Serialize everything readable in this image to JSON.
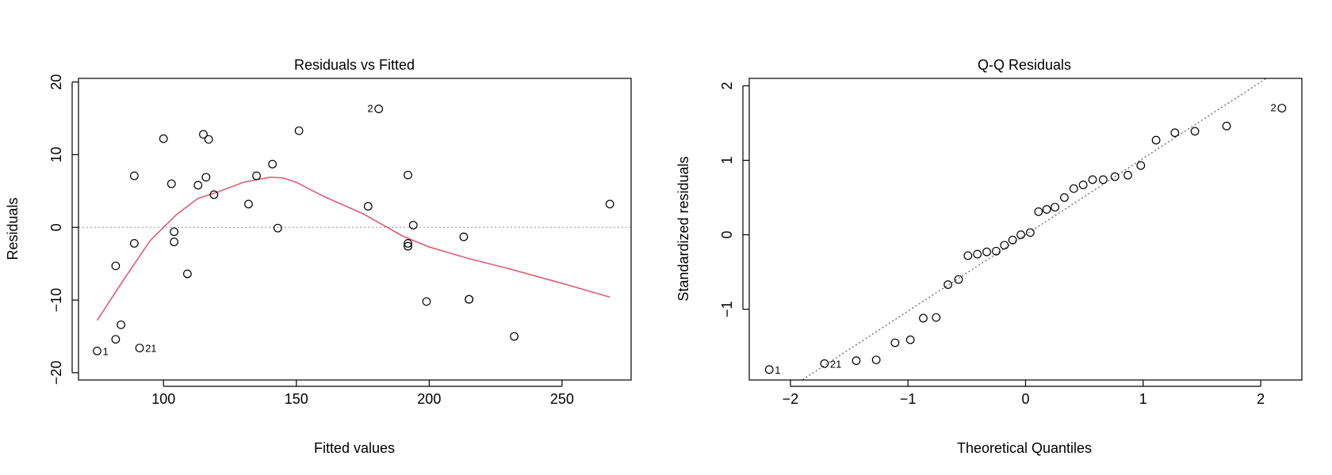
{
  "chart_data": [
    {
      "type": "scatter",
      "title": "Residuals vs Fitted",
      "xlabel": "Fitted values",
      "ylabel": "Residuals",
      "xlim": [
        68,
        276
      ],
      "ylim": [
        -21,
        20.5
      ],
      "xticks": [
        100,
        150,
        200,
        250
      ],
      "yticks": [
        -20,
        -10,
        0,
        10,
        20
      ],
      "reference_line": {
        "y": 0,
        "style": "dotted",
        "color": "#9a9a9a"
      },
      "smooth_color": "#df536b",
      "points": [
        {
          "x": 75,
          "y": -17,
          "label": "1"
        },
        {
          "x": 82,
          "y": -15.4
        },
        {
          "x": 82,
          "y": -5.3
        },
        {
          "x": 84,
          "y": -13.4
        },
        {
          "x": 89,
          "y": 7.1
        },
        {
          "x": 89,
          "y": -2.2
        },
        {
          "x": 91,
          "y": -16.6,
          "label": "21"
        },
        {
          "x": 100,
          "y": 12.2
        },
        {
          "x": 103,
          "y": 6
        },
        {
          "x": 104,
          "y": -0.6
        },
        {
          "x": 104,
          "y": -2
        },
        {
          "x": 109,
          "y": -6.4
        },
        {
          "x": 113,
          "y": 5.8
        },
        {
          "x": 115,
          "y": 12.8
        },
        {
          "x": 116,
          "y": 6.9
        },
        {
          "x": 117,
          "y": 12.1
        },
        {
          "x": 119,
          "y": 4.5
        },
        {
          "x": 132,
          "y": 3.2
        },
        {
          "x": 135,
          "y": 7.1
        },
        {
          "x": 141,
          "y": 8.7
        },
        {
          "x": 143,
          "y": -0.1
        },
        {
          "x": 151,
          "y": 13.3
        },
        {
          "x": 177,
          "y": 2.9
        },
        {
          "x": 181,
          "y": 16.3,
          "label": "2"
        },
        {
          "x": 192,
          "y": 7.2
        },
        {
          "x": 192,
          "y": -2.2
        },
        {
          "x": 192,
          "y": -2.6
        },
        {
          "x": 194,
          "y": 0.3
        },
        {
          "x": 199,
          "y": -10.2
        },
        {
          "x": 213,
          "y": -1.3
        },
        {
          "x": 215,
          "y": -9.9
        },
        {
          "x": 215,
          "y": -9.9
        },
        {
          "x": 232,
          "y": -15
        },
        {
          "x": 268,
          "y": 3.2
        }
      ],
      "smooth_line": {
        "x": [
          75,
          85,
          95,
          105,
          113,
          120,
          130,
          140,
          145,
          150,
          160,
          175,
          190,
          200,
          215,
          230,
          250,
          268
        ],
        "y": [
          -12.8,
          -7.2,
          -1.8,
          1.8,
          4,
          4.8,
          6.2,
          6.9,
          6.8,
          6.2,
          4.3,
          1.9,
          -1.2,
          -2.7,
          -4.3,
          -5.7,
          -7.7,
          -9.6
        ]
      }
    },
    {
      "type": "scatter",
      "title": "Q-Q Residuals",
      "xlabel": "Theoretical Quantiles",
      "ylabel": "Standardized residuals",
      "xlim": [
        -2.35,
        2.35
      ],
      "ylim": [
        -1.95,
        2.1
      ],
      "xticks": [
        -2,
        -1,
        0,
        1,
        2
      ],
      "yticks": [
        -1,
        0,
        1,
        2
      ],
      "reference_line": {
        "x": [
          -2.35,
          2.35
        ],
        "y": [
          -2.41,
          2.41
        ],
        "style": "dotted",
        "color": "#666666"
      },
      "points": [
        {
          "x": -2.18,
          "y": -1.81,
          "label": "1"
        },
        {
          "x": -1.71,
          "y": -1.73,
          "label": "21"
        },
        {
          "x": -1.44,
          "y": -1.69
        },
        {
          "x": -1.27,
          "y": -1.68
        },
        {
          "x": -1.11,
          "y": -1.45
        },
        {
          "x": -0.98,
          "y": -1.41
        },
        {
          "x": -0.87,
          "y": -1.12
        },
        {
          "x": -0.76,
          "y": -1.11
        },
        {
          "x": -0.66,
          "y": -0.67
        },
        {
          "x": -0.57,
          "y": -0.6
        },
        {
          "x": -0.49,
          "y": -0.28
        },
        {
          "x": -0.41,
          "y": -0.26
        },
        {
          "x": -0.33,
          "y": -0.23
        },
        {
          "x": -0.25,
          "y": -0.22
        },
        {
          "x": -0.18,
          "y": -0.14
        },
        {
          "x": -0.11,
          "y": -0.07
        },
        {
          "x": -0.04,
          "y": 0
        },
        {
          "x": 0.04,
          "y": 0.03
        },
        {
          "x": 0.11,
          "y": 0.31
        },
        {
          "x": 0.18,
          "y": 0.34
        },
        {
          "x": 0.25,
          "y": 0.37
        },
        {
          "x": 0.33,
          "y": 0.5
        },
        {
          "x": 0.41,
          "y": 0.62
        },
        {
          "x": 0.49,
          "y": 0.67
        },
        {
          "x": 0.57,
          "y": 0.74
        },
        {
          "x": 0.66,
          "y": 0.74
        },
        {
          "x": 0.76,
          "y": 0.78
        },
        {
          "x": 0.87,
          "y": 0.8
        },
        {
          "x": 0.98,
          "y": 0.93
        },
        {
          "x": 1.11,
          "y": 1.27
        },
        {
          "x": 1.27,
          "y": 1.37
        },
        {
          "x": 1.44,
          "y": 1.39
        },
        {
          "x": 1.71,
          "y": 1.46
        },
        {
          "x": 2.18,
          "y": 1.7,
          "label": "2"
        }
      ]
    }
  ]
}
